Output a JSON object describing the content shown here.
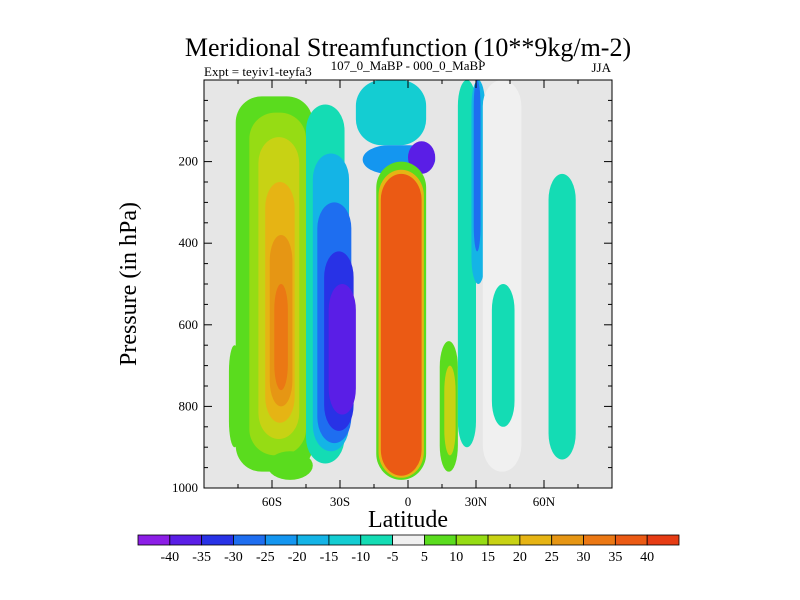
{
  "chart_data": {
    "type": "heatmap",
    "title": "Meridional Streamfunction (10**9kg/m-2)",
    "subtitle_left": "Expt = teyiv1-teyfa3",
    "subtitle_center": "107_0_MaBP - 000_0_MaBP",
    "subtitle_right": "JJA",
    "xlabel": "Latitude",
    "ylabel": "Pressure (in hPa)",
    "xlim": [
      -90,
      90
    ],
    "ylim": [
      0,
      1000
    ],
    "x_ticks": [
      {
        "value": -60,
        "label": "60S"
      },
      {
        "value": -30,
        "label": "30S"
      },
      {
        "value": 0,
        "label": "0"
      },
      {
        "value": 30,
        "label": "30N"
      },
      {
        "value": 60,
        "label": "60N"
      }
    ],
    "y_ticks": [
      {
        "value": 200,
        "label": "200"
      },
      {
        "value": 400,
        "label": "400"
      },
      {
        "value": 600,
        "label": "600"
      },
      {
        "value": 800,
        "label": "800"
      },
      {
        "value": 1000,
        "label": "1000"
      }
    ],
    "background_color": "#e6e6e6",
    "colorbar": {
      "colors": [
        "#8c1ee6",
        "#5a1ee6",
        "#2832e6",
        "#1e6ef0",
        "#1496f0",
        "#14b4e6",
        "#14cdd2",
        "#14dcb4",
        "#f0f0f0",
        "#5adc1e",
        "#96dc14",
        "#c8d214",
        "#e6b414",
        "#e69614",
        "#eb7814",
        "#eb5a14",
        "#e63c14"
      ],
      "labels": [
        "-40",
        "-35",
        "-30",
        "-25",
        "-20",
        "-15",
        "-10",
        "-5",
        "5",
        "10",
        "15",
        "20",
        "25",
        "30",
        "35",
        "40"
      ]
    },
    "cells": [
      {
        "lat": [
          -79,
          -74
        ],
        "p": [
          650,
          900
        ],
        "level": 1
      },
      {
        "lat": [
          -76,
          -42
        ],
        "p": [
          40,
          960
        ],
        "level": 1
      },
      {
        "lat": [
          -70,
          -45
        ],
        "p": [
          80,
          920
        ],
        "level": 2
      },
      {
        "lat": [
          -66,
          -48
        ],
        "p": [
          140,
          880
        ],
        "level": 3
      },
      {
        "lat": [
          -63,
          -50
        ],
        "p": [
          250,
          840
        ],
        "level": 4
      },
      {
        "lat": [
          -61,
          -51
        ],
        "p": [
          380,
          800
        ],
        "level": 5
      },
      {
        "lat": [
          -59,
          -53
        ],
        "p": [
          500,
          760
        ],
        "level": 6
      },
      {
        "lat": [
          -45,
          -28
        ],
        "p": [
          60,
          940
        ],
        "level": -1
      },
      {
        "lat": [
          -42,
          -26
        ],
        "p": [
          180,
          910
        ],
        "level": -3
      },
      {
        "lat": [
          -40,
          -25
        ],
        "p": [
          300,
          890
        ],
        "level": -5
      },
      {
        "lat": [
          -37,
          -24
        ],
        "p": [
          420,
          860
        ],
        "level": -6
      },
      {
        "lat": [
          -35,
          -23
        ],
        "p": [
          500,
          820
        ],
        "level": -7
      },
      {
        "lat": [
          -23,
          8
        ],
        "p": [
          0,
          160
        ],
        "level": -2
      },
      {
        "lat": [
          -20,
          12
        ],
        "p": [
          160,
          230
        ],
        "level": -4
      },
      {
        "lat": [
          0,
          12
        ],
        "p": [
          150,
          230
        ],
        "level": -7
      },
      {
        "lat": [
          -14,
          8
        ],
        "p": [
          200,
          980
        ],
        "level": 1
      },
      {
        "lat": [
          -13,
          7
        ],
        "p": [
          220,
          975
        ],
        "level": 4
      },
      {
        "lat": [
          -12,
          6
        ],
        "p": [
          230,
          970
        ],
        "level": 7
      },
      {
        "lat": [
          14,
          22
        ],
        "p": [
          640,
          960
        ],
        "level": 1
      },
      {
        "lat": [
          16,
          21
        ],
        "p": [
          700,
          920
        ],
        "level": 3
      },
      {
        "lat": [
          22,
          30
        ],
        "p": [
          0,
          900
        ],
        "level": -1
      },
      {
        "lat": [
          28,
          34
        ],
        "p": [
          0,
          500
        ],
        "level": -3
      },
      {
        "lat": [
          29,
          32
        ],
        "p": [
          0,
          420
        ],
        "level": -5
      },
      {
        "lat": [
          33,
          50
        ],
        "p": [
          0,
          960
        ],
        "level": 0
      },
      {
        "lat": [
          -62,
          -42
        ],
        "p": [
          910,
          980
        ],
        "level": 1
      },
      {
        "lat": [
          37,
          47
        ],
        "p": [
          500,
          850
        ],
        "level": -1
      },
      {
        "lat": [
          62,
          74
        ],
        "p": [
          230,
          930
        ],
        "level": -1
      }
    ]
  }
}
